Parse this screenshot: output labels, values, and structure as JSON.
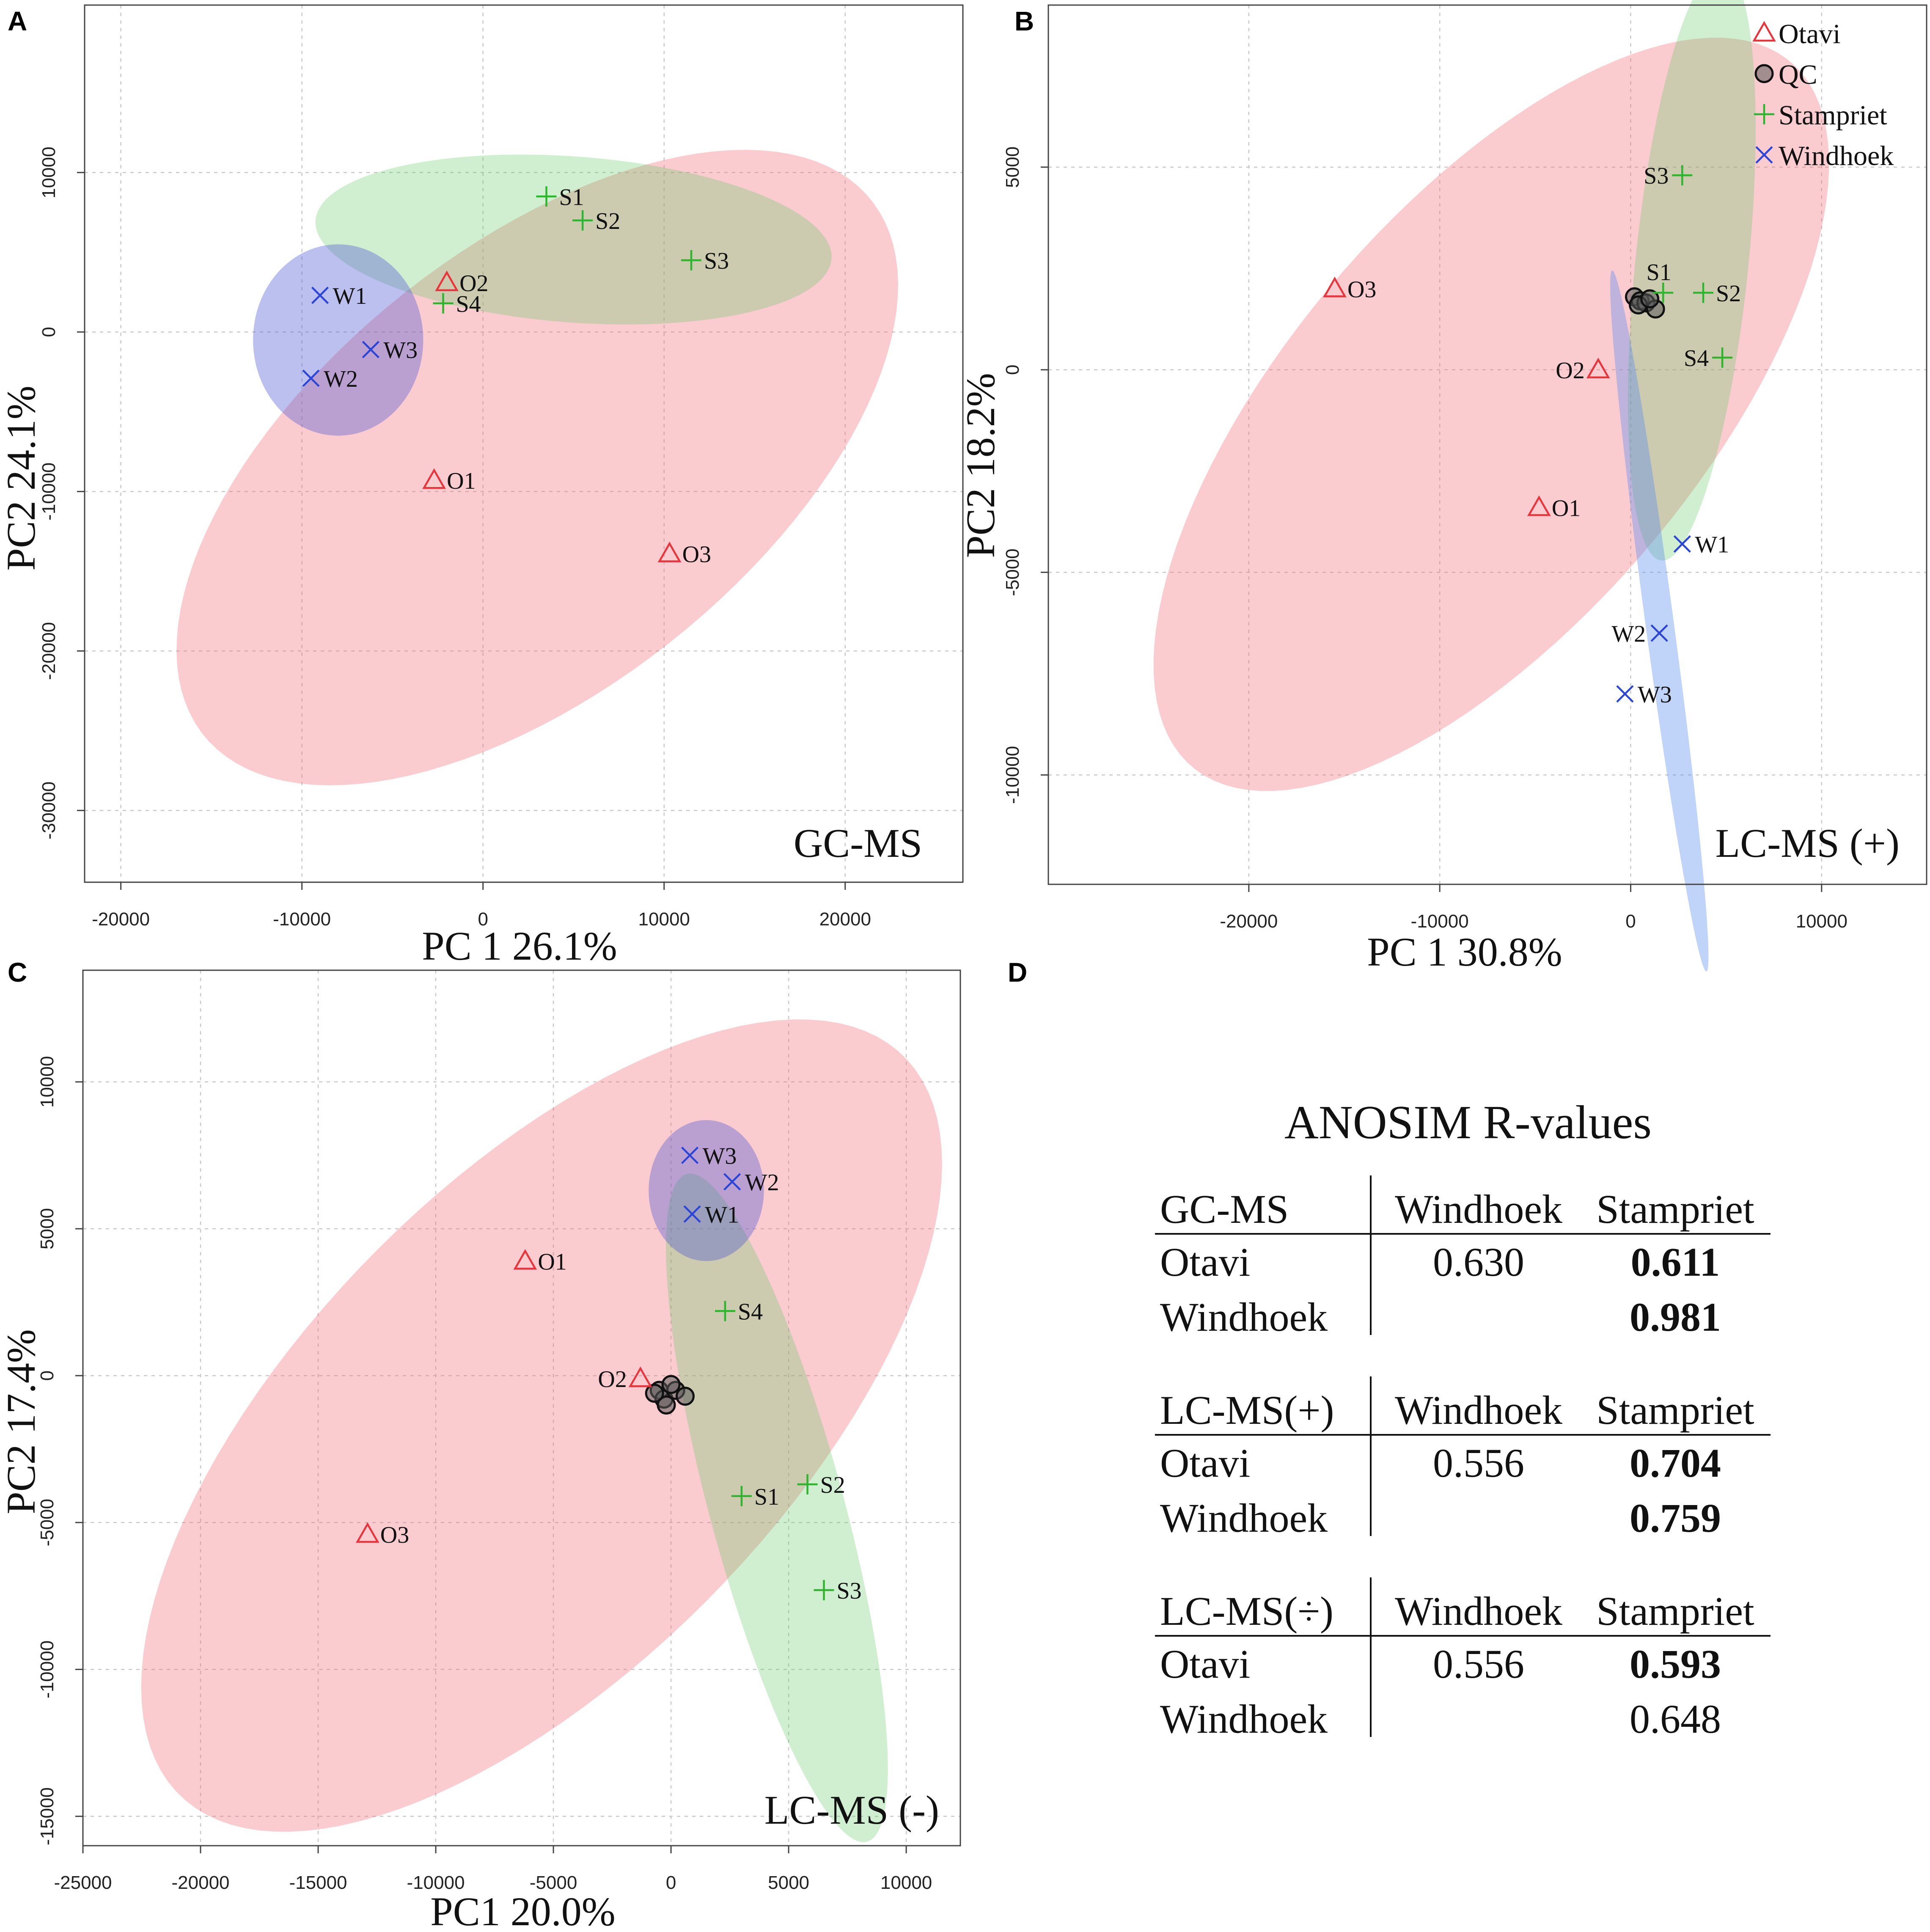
{
  "colors": {
    "otavi": "#e8343a",
    "stampriet": "#2db52d",
    "windhoek": "#2b45d8",
    "qc": "#333333",
    "otavi_fill": "rgba(240,110,120,0.35)",
    "stampriet_fill": "rgba(100,200,100,0.30)",
    "windhoek_fill": "rgba(80,90,210,0.38)",
    "windhoek_fill_b": "rgba(90,140,240,0.38)"
  },
  "chart_data": [
    {
      "panel": "A",
      "type": "scatter",
      "method_label": "GC-MS",
      "xlabel": "PC 1  26.1%",
      "ylabel": "PC2  24.1%",
      "xlim": [
        -22000,
        26500
      ],
      "ylim": [
        -34500,
        20500
      ],
      "xticks": [
        -20000,
        -10000,
        0,
        10000,
        20000
      ],
      "xtick_labels": [
        "-20000",
        "-10000",
        "0",
        "10000",
        "20000"
      ],
      "yticks": [
        10000,
        0,
        -10000,
        -20000,
        -30000
      ],
      "ytick_labels": [
        "10000",
        "0",
        "-10000",
        "-20000",
        "-30000"
      ],
      "grid": true,
      "ellipses": [
        {
          "group": "Otavi",
          "cx": 3000,
          "cy": -8500,
          "rx": 25000,
          "ry": 13000,
          "angle_deg": 45
        },
        {
          "group": "Stampriet",
          "cx": 5000,
          "cy": 5800,
          "rx": 14300,
          "ry": 5200,
          "angle_deg": -5
        },
        {
          "group": "Windhoek",
          "cx": -8000,
          "cy": -500,
          "rx": 4700,
          "ry": 6000,
          "angle_deg": 0
        }
      ],
      "points": [
        {
          "group": "Otavi",
          "label": "O1",
          "x": -2700,
          "y": -9300
        },
        {
          "group": "Otavi",
          "label": "O2",
          "x": -2000,
          "y": 3100
        },
        {
          "group": "Otavi",
          "label": "O3",
          "x": 10300,
          "y": -13900
        },
        {
          "group": "Stampriet",
          "label": "S1",
          "x": 3500,
          "y": 8500
        },
        {
          "group": "Stampriet",
          "label": "S2",
          "x": 5500,
          "y": 7000
        },
        {
          "group": "Stampriet",
          "label": "S3",
          "x": 11500,
          "y": 4500
        },
        {
          "group": "Stampriet",
          "label": "S4",
          "x": -2200,
          "y": 1800
        },
        {
          "group": "Windhoek",
          "label": "W1",
          "x": -9000,
          "y": 2300
        },
        {
          "group": "Windhoek",
          "label": "W2",
          "x": -9500,
          "y": -2900
        },
        {
          "group": "Windhoek",
          "label": "W3",
          "x": -6200,
          "y": -1100
        }
      ]
    },
    {
      "panel": "B",
      "type": "scatter",
      "method_label": "LC-MS (+)",
      "xlabel": "PC 1  30.8%",
      "ylabel": "PC2  18.2%",
      "xlim": [
        -30500,
        15500
      ],
      "ylim": [
        -12700,
        9000
      ],
      "xticks": [
        -20000,
        -10000,
        0,
        10000
      ],
      "xtick_labels": [
        "-20000",
        "-10000",
        "0",
        "10000"
      ],
      "yticks": [
        5000,
        0,
        -5000,
        -10000
      ],
      "ytick_labels": [
        "5000",
        "0",
        "-5000",
        "-10000"
      ],
      "grid": true,
      "legend": [
        "Otavi",
        "QC",
        "Stampriet",
        "Windhoek"
      ],
      "legend_position": "top-right",
      "ellipses": [
        {
          "group": "Otavi",
          "cx": -7300,
          "cy": -1100,
          "rx": 18900,
          "ry": 6500,
          "angle_deg": 22
        },
        {
          "group": "Stampriet",
          "cx": 3200,
          "cy": 2600,
          "rx": 2900,
          "ry": 7500,
          "angle_deg": -14
        },
        {
          "group": "Windhoek",
          "cx": 1500,
          "cy": -6200,
          "rx": 720,
          "ry": 9000,
          "angle_deg": 16
        }
      ],
      "points": [
        {
          "group": "Otavi",
          "label": "O1",
          "x": -4800,
          "y": -3400
        },
        {
          "group": "Otavi",
          "label": "O2",
          "x": -1700,
          "y": 0
        },
        {
          "group": "Otavi",
          "label": "O3",
          "x": -15500,
          "y": 2000
        },
        {
          "group": "Stampriet",
          "label": "S1",
          "x": 1700,
          "y": 1900
        },
        {
          "group": "Stampriet",
          "label": "S2",
          "x": 3800,
          "y": 1900
        },
        {
          "group": "Stampriet",
          "label": "S3",
          "x": 2700,
          "y": 4800
        },
        {
          "group": "Stampriet",
          "label": "S4",
          "x": 4800,
          "y": 300
        },
        {
          "group": "Windhoek",
          "label": "W1",
          "x": 2700,
          "y": -4300
        },
        {
          "group": "Windhoek",
          "label": "W2",
          "x": 1500,
          "y": -6500
        },
        {
          "group": "Windhoek",
          "label": "W3",
          "x": -300,
          "y": -8000
        }
      ],
      "qc": [
        {
          "x": 200,
          "y": 1800
        },
        {
          "x": 500,
          "y": 1700
        },
        {
          "x": 800,
          "y": 1650
        },
        {
          "x": 1300,
          "y": 1500
        },
        {
          "x": 400,
          "y": 1600
        },
        {
          "x": 1000,
          "y": 1750
        }
      ]
    },
    {
      "panel": "C",
      "type": "scatter",
      "method_label": "LC-MS (-)",
      "xlabel": "PC1 20.0%",
      "ylabel": "PC2  17.4%",
      "xlim": [
        -25000,
        12300
      ],
      "ylim": [
        -16000,
        13800
      ],
      "xticks": [
        -25000,
        -20000,
        -15000,
        -10000,
        -5000,
        0,
        5000,
        10000
      ],
      "xtick_labels": [
        "-25000",
        "-20000",
        "-15000",
        "-10000",
        "-5000",
        "0",
        "5000",
        "10000"
      ],
      "yticks": [
        10000,
        5000,
        0,
        -5000,
        -10000,
        -15000
      ],
      "ytick_labels": [
        "10000",
        "5000",
        "0",
        "-5000",
        "-10000",
        "-15000"
      ],
      "grid": true,
      "ellipses": [
        {
          "group": "Otavi",
          "cx": -5500,
          "cy": -1700,
          "rx": 20000,
          "ry": 9000,
          "angle_deg": 36
        },
        {
          "group": "Stampriet",
          "cx": 4500,
          "cy": -4500,
          "rx": 2800,
          "ry": 12000,
          "angle_deg": 19
        },
        {
          "group": "Windhoek",
          "cx": 1500,
          "cy": 6300,
          "rx": 2450,
          "ry": 2400,
          "angle_deg": 0
        }
      ],
      "points": [
        {
          "group": "Otavi",
          "label": "O1",
          "x": -6200,
          "y": 3900
        },
        {
          "group": "Otavi",
          "label": "O2",
          "x": -1300,
          "y": -100
        },
        {
          "group": "Otavi",
          "label": "O3",
          "x": -12900,
          "y": -5400
        },
        {
          "group": "Stampriet",
          "label": "S1",
          "x": 3000,
          "y": -4100
        },
        {
          "group": "Stampriet",
          "label": "S2",
          "x": 5800,
          "y": -3700
        },
        {
          "group": "Stampriet",
          "label": "S3",
          "x": 6500,
          "y": -7300
        },
        {
          "group": "Stampriet",
          "label": "S4",
          "x": 2300,
          "y": 2200
        },
        {
          "group": "Windhoek",
          "label": "W1",
          "x": 900,
          "y": 5500
        },
        {
          "group": "Windhoek",
          "label": "W2",
          "x": 2600,
          "y": 6600
        },
        {
          "group": "Windhoek",
          "label": "W3",
          "x": 800,
          "y": 7500
        }
      ],
      "qc": [
        {
          "x": -500,
          "y": -500
        },
        {
          "x": -300,
          "y": -800
        },
        {
          "x": 200,
          "y": -500
        },
        {
          "x": -200,
          "y": -1000
        },
        {
          "x": 600,
          "y": -700
        },
        {
          "x": -700,
          "y": -600
        },
        {
          "x": 0,
          "y": -300
        }
      ]
    },
    {
      "panel": "D",
      "type": "table",
      "title": "ANOSIM R-values",
      "col_headers": [
        "Windhoek",
        "Stampriet"
      ],
      "blocks": [
        {
          "method": "GC-MS",
          "rows": [
            {
              "label": "Otavi",
              "cells": [
                {
                  "value": "0.630",
                  "bold": false
                },
                {
                  "value": "0.611",
                  "bold": true
                }
              ]
            },
            {
              "label": "Windhoek",
              "cells": [
                {
                  "value": "",
                  "bold": false
                },
                {
                  "value": "0.981",
                  "bold": true
                }
              ]
            }
          ]
        },
        {
          "method": "LC-MS(+)",
          "rows": [
            {
              "label": "Otavi",
              "cells": [
                {
                  "value": "0.556",
                  "bold": false
                },
                {
                  "value": "0.704",
                  "bold": true
                }
              ]
            },
            {
              "label": "Windhoek",
              "cells": [
                {
                  "value": "",
                  "bold": false
                },
                {
                  "value": "0.759",
                  "bold": true
                }
              ]
            }
          ]
        },
        {
          "method": "LC-MS(÷)",
          "rows": [
            {
              "label": "Otavi",
              "cells": [
                {
                  "value": "0.556",
                  "bold": false
                },
                {
                  "value": "0.593",
                  "bold": true
                }
              ]
            },
            {
              "label": "Windhoek",
              "cells": [
                {
                  "value": "",
                  "bold": false
                },
                {
                  "value": "0.648",
                  "bold": false
                }
              ]
            }
          ]
        }
      ]
    }
  ]
}
